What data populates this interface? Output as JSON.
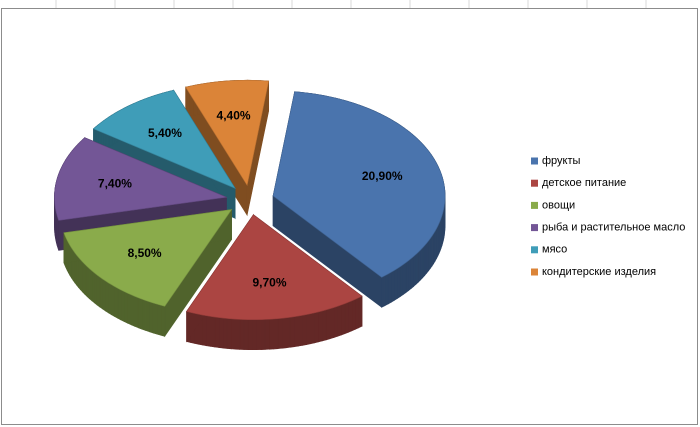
{
  "chart_data": {
    "type": "pie",
    "categories": [
      "фрукты",
      "детское питание",
      "овощи",
      "рыба и  растительное масло",
      "мясо",
      "кондитерские изделия"
    ],
    "values": [
      20.9,
      9.7,
      8.5,
      7.4,
      5.4,
      4.4
    ],
    "value_labels": [
      "20,90%",
      "9,70%",
      "8,50%",
      "7,40%",
      "5,40%",
      "4,40%"
    ],
    "colors": [
      "#4a74ad",
      "#ab4542",
      "#8aab4b",
      "#735696",
      "#3f9db8",
      "#db8438"
    ],
    "legend": "right"
  }
}
